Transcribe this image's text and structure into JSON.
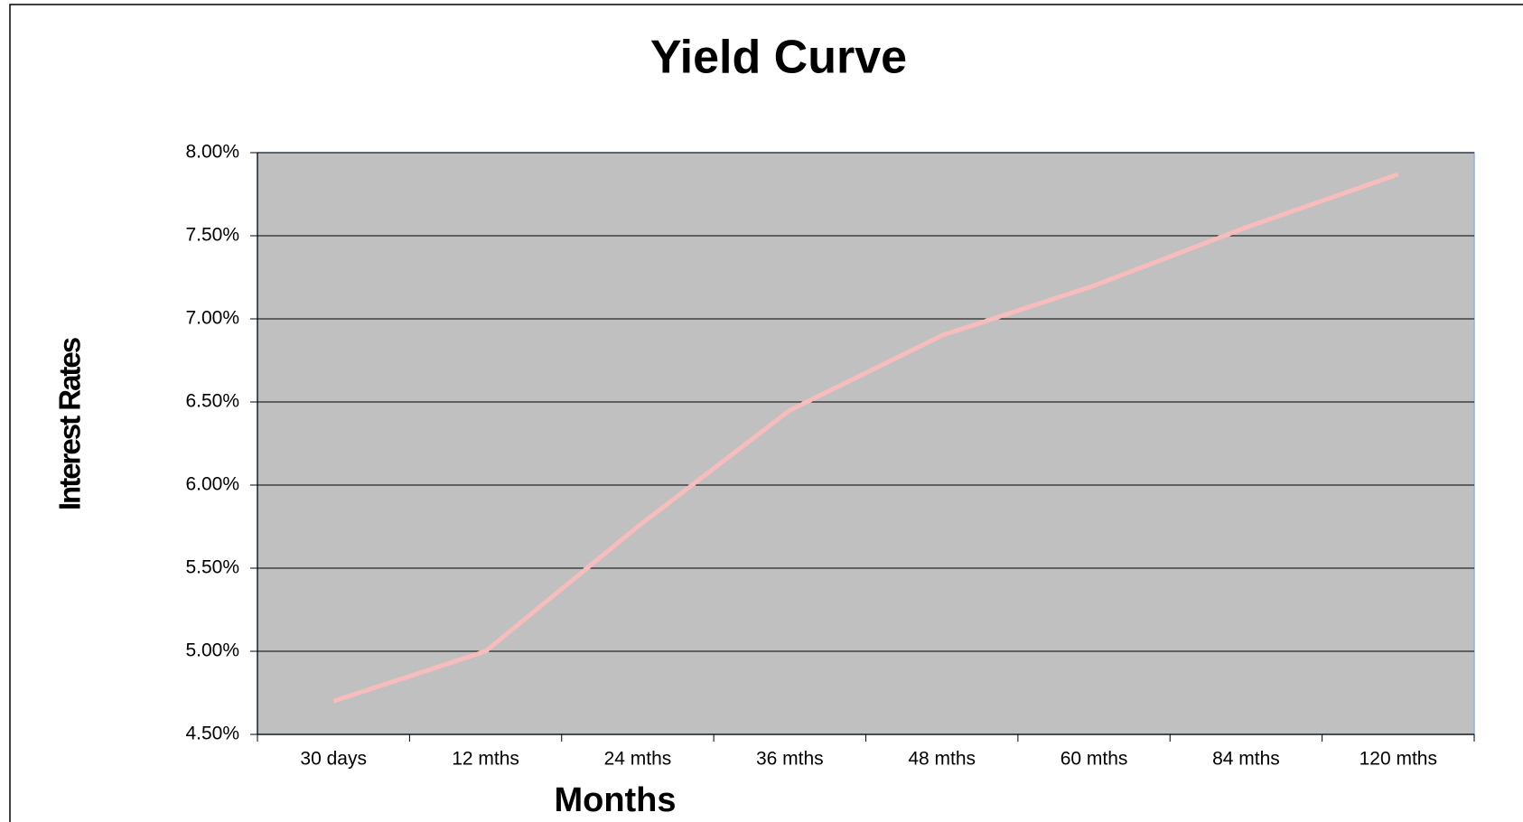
{
  "chart_data": {
    "type": "line",
    "title": "Yield Curve",
    "x_label": "Months",
    "y_label": "Interest Rates",
    "categories": [
      "30 days",
      "12 mths",
      "24 mths",
      "36 mths",
      "48 mths",
      "60 mths",
      "84 mths",
      "120 mths"
    ],
    "series": [
      {
        "name": "Interest Rates",
        "color": "#f7bcbc",
        "values": [
          4.7,
          5.0,
          5.75,
          6.45,
          6.9,
          7.2,
          7.55,
          7.87
        ]
      }
    ],
    "ylim": [
      4.5,
      8
    ],
    "yticks": [
      {
        "value": 4.5,
        "label": "4.50%"
      },
      {
        "value": 5,
        "label": "5.00%"
      },
      {
        "value": 5.5,
        "label": "5.50%"
      },
      {
        "value": 6,
        "label": "6.00%"
      },
      {
        "value": 6.5,
        "label": "6.50%"
      },
      {
        "value": 7,
        "label": "7.00%"
      },
      {
        "value": 7.5,
        "label": "7.50%"
      },
      {
        "value": 8,
        "label": "8.00%"
      }
    ],
    "grid": true,
    "plot_background": "#c0c0c0"
  }
}
